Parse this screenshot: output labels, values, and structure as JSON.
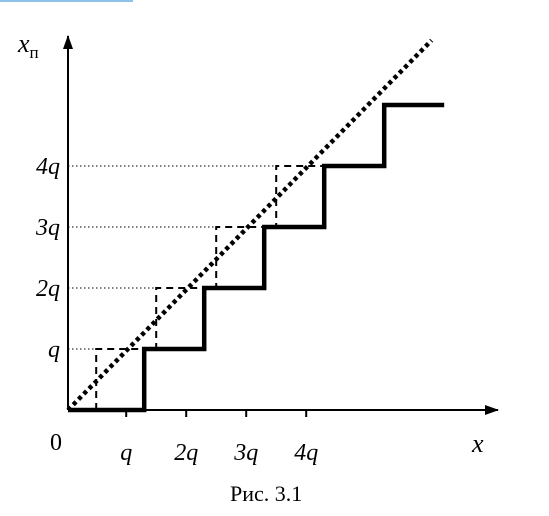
{
  "figure": {
    "caption": "Рис. 3.1",
    "origin_label": "0",
    "x_axis": {
      "name": "x"
    },
    "y_axis": {
      "name": "x",
      "subscript": "п"
    },
    "x_ticks": [
      "q",
      "2q",
      "3q",
      "4q"
    ],
    "y_ticks": [
      "q",
      "2q",
      "3q",
      "4q"
    ]
  },
  "chart_data": {
    "type": "line",
    "unit": "q",
    "series": [
      {
        "style": "dotted",
        "points": [
          [
            0,
            0
          ],
          [
            6.06,
            6.06
          ]
        ]
      },
      {
        "style": "solid",
        "points": [
          [
            0,
            0
          ],
          [
            0.91,
            0
          ],
          [
            1.27,
            0
          ],
          [
            1.27,
            1
          ],
          [
            2.27,
            1
          ],
          [
            2.27,
            2
          ],
          [
            3.27,
            2
          ],
          [
            3.27,
            3
          ],
          [
            4.27,
            3
          ],
          [
            4.27,
            4
          ],
          [
            5.27,
            4
          ],
          [
            5.27,
            5
          ],
          [
            6.27,
            5
          ]
        ]
      },
      {
        "style": "dashed",
        "points": [
          [
            0.47,
            0
          ],
          [
            0.47,
            1
          ],
          [
            1.47,
            1
          ],
          [
            1.47,
            2
          ],
          [
            2.47,
            2
          ],
          [
            2.47,
            3
          ],
          [
            3.47,
            3
          ],
          [
            3.47,
            4
          ],
          [
            4.27,
            4
          ]
        ]
      }
    ]
  }
}
